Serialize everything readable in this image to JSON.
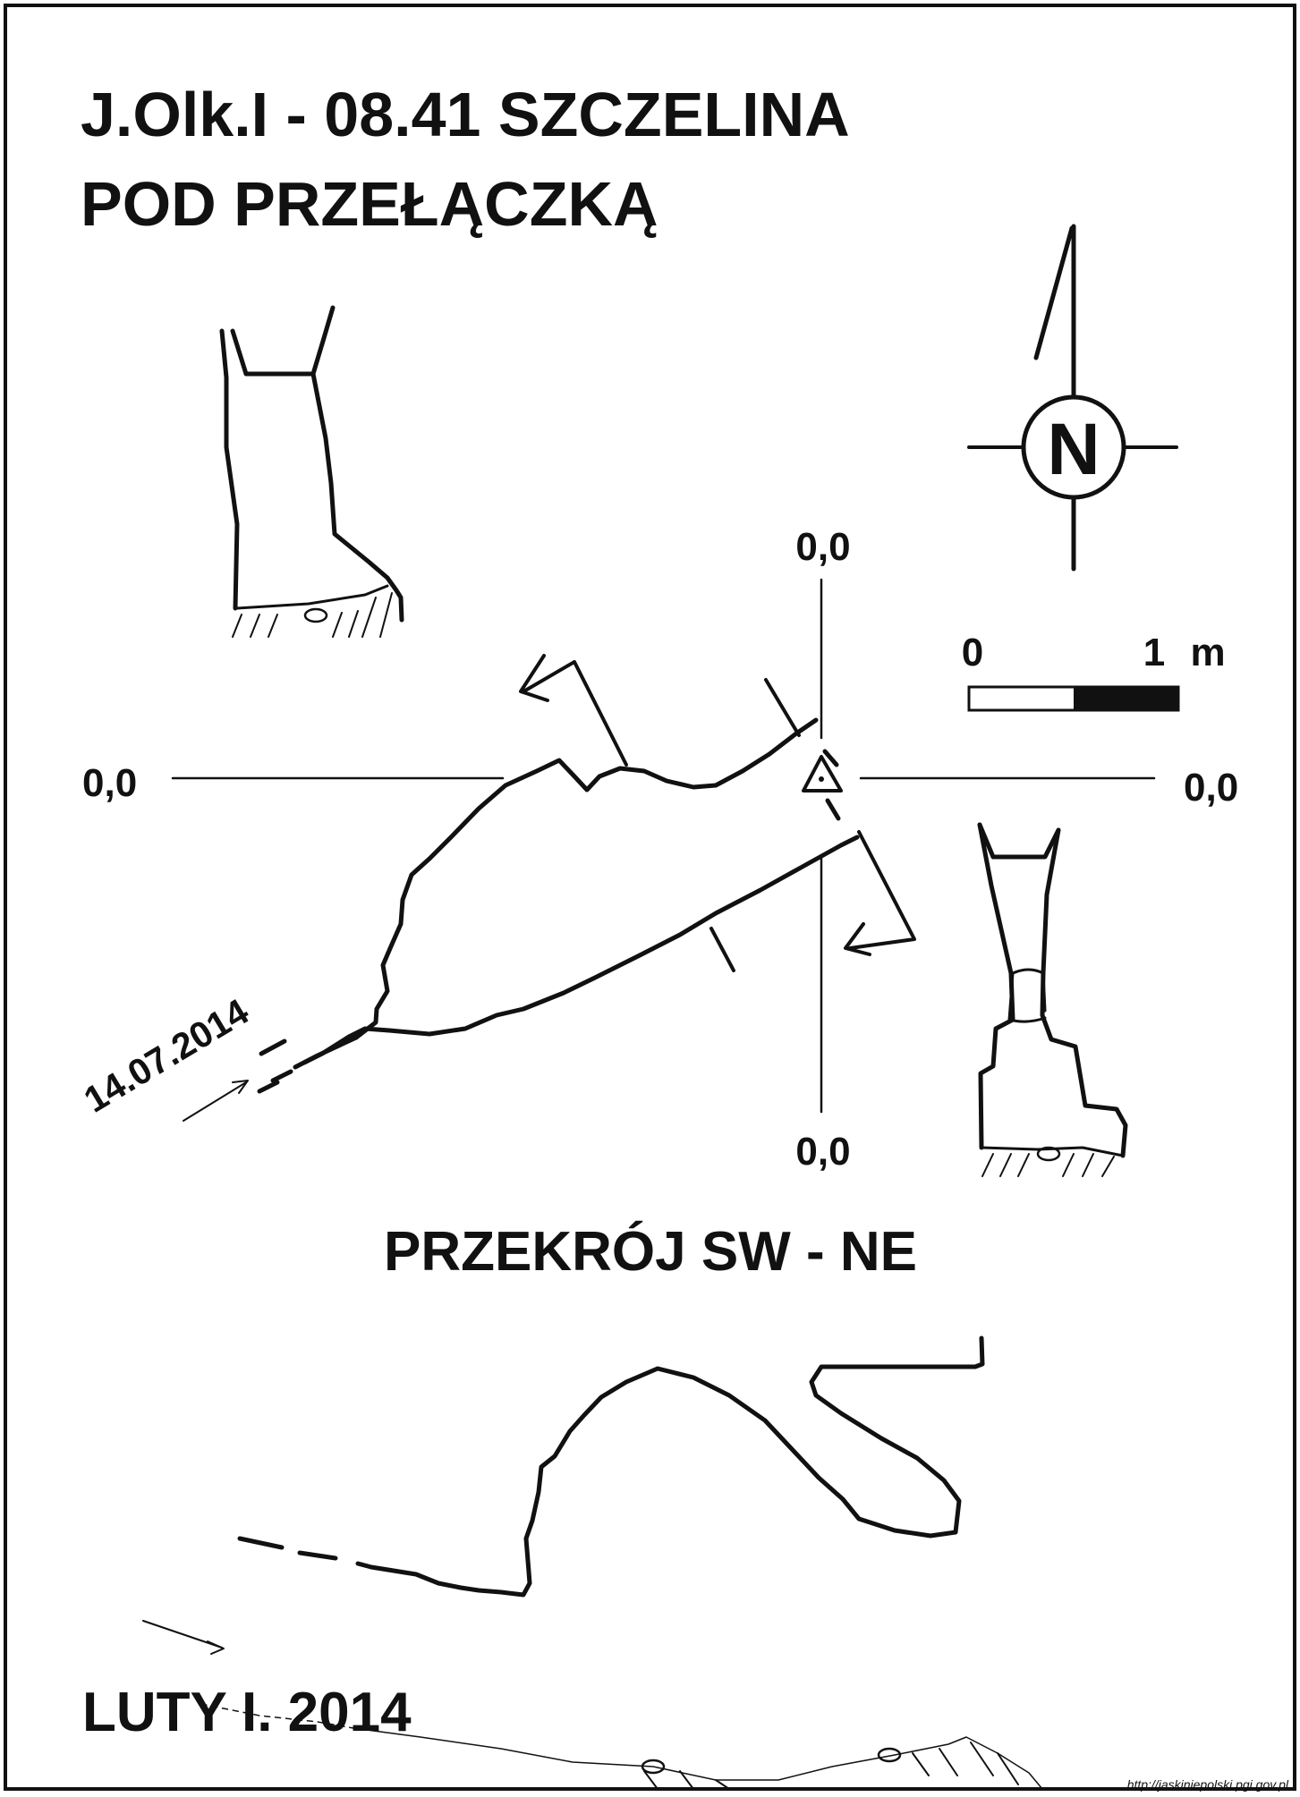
{
  "map": {
    "title_line1": "J.Olk.I - 08.41  SZCZELINA",
    "title_line2": "POD PRZEŁĄCZKĄ",
    "north_letter": "N",
    "scale": {
      "start": "0",
      "end": "1",
      "unit": "m"
    },
    "datum_labels": {
      "top": "0,0",
      "left": "0,0",
      "right": "0,0",
      "bottom": "0,0"
    },
    "entrance_date": "14.07.2014",
    "section_title": "PRZEKRÓJ SW - NE",
    "survey_date": "LUTY I. 2014",
    "credit": "http://jaskiniepolski.pgi.gov.pl"
  },
  "colors": {
    "ink": "#111111",
    "paper": "#ffffff"
  },
  "icons": [
    "north-arrow-icon",
    "survey-point-icon",
    "entrance-arrow-icon",
    "scale-bar-icon"
  ]
}
